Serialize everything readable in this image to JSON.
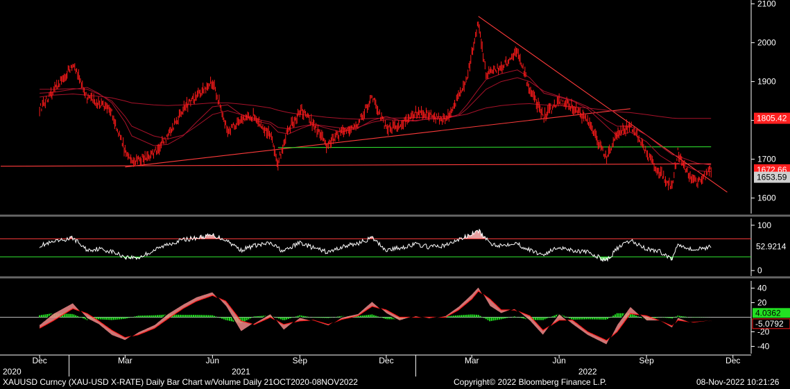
{
  "footer": {
    "description": "XAUUSD Curncy (XAU-USD X-RATE) Daily Bar Chart w/Volume  Daily 21OCT2020-08NOV2022",
    "copyright": "Copyright© 2022 Bloomberg Finance L.P.",
    "timestamp": "08-Nov-2022 10:21:26"
  },
  "colors": {
    "background": "#000000",
    "price": "#ff1a1a",
    "moving_average": "#a8122a",
    "trendline": "#ff3b3b",
    "support_green": "#2edc2e",
    "histogram_green": "#22e022",
    "rsi_line": "#ffffff",
    "fill_red": "#ffb3b3"
  },
  "chart_data": [
    {
      "type": "line",
      "panel": "price",
      "ylim": [
        1560,
        2110
      ],
      "yticks": [
        "1600",
        "1700",
        "1800",
        "1900",
        "2000",
        "2100"
      ],
      "last_value_tags": [
        {
          "label": "1805.42",
          "value": 1805.42,
          "color": "#ff2020"
        },
        {
          "label": "1672.66",
          "value": 1672.66,
          "color": "#ff2020"
        },
        {
          "label": "1653.59",
          "value": 1653.59,
          "color": "#d0d0d0"
        }
      ],
      "x": [
        "2020-12-01",
        "2020-12-15",
        "2021-01-05",
        "2021-01-20",
        "2021-02-01",
        "2021-02-15",
        "2021-03-01",
        "2021-03-08",
        "2021-03-31",
        "2021-04-15",
        "2021-05-01",
        "2021-05-15",
        "2021-06-01",
        "2021-06-17",
        "2021-07-01",
        "2021-07-15",
        "2021-08-01",
        "2021-08-09",
        "2021-08-20",
        "2021-09-03",
        "2021-09-15",
        "2021-09-29",
        "2021-10-15",
        "2021-11-01",
        "2021-11-16",
        "2021-12-01",
        "2021-12-15",
        "2022-01-01",
        "2022-01-15",
        "2022-02-01",
        "2022-02-15",
        "2022-02-24",
        "2022-03-08",
        "2022-03-16",
        "2022-04-01",
        "2022-04-18",
        "2022-05-01",
        "2022-05-16",
        "2022-06-01",
        "2022-06-15",
        "2022-07-01",
        "2022-07-21",
        "2022-08-01",
        "2022-08-15",
        "2022-09-01",
        "2022-09-15",
        "2022-09-28",
        "2022-10-04",
        "2022-10-15",
        "2022-10-24",
        "2022-11-08"
      ],
      "series": [
        {
          "values": [
            1830,
            1870,
            1945,
            1860,
            1845,
            1820,
            1720,
            1690,
            1715,
            1760,
            1830,
            1860,
            1900,
            1775,
            1795,
            1815,
            1760,
            1690,
            1780,
            1825,
            1790,
            1735,
            1770,
            1790,
            1860,
            1780,
            1785,
            1820,
            1815,
            1800,
            1860,
            1910,
            2055,
            1920,
            1935,
            1975,
            1880,
            1810,
            1850,
            1835,
            1800,
            1700,
            1765,
            1790,
            1715,
            1665,
            1630,
            1720,
            1660,
            1640,
            1672
          ]
        }
      ],
      "moving_averages": [
        {
          "values": [
            1870,
            1872,
            1880,
            1885,
            1870,
            1845,
            1795,
            1760,
            1735,
            1738,
            1760,
            1795,
            1835,
            1840,
            1815,
            1800,
            1790,
            1770,
            1765,
            1780,
            1790,
            1780,
            1770,
            1780,
            1800,
            1810,
            1800,
            1798,
            1805,
            1805,
            1815,
            1840,
            1880,
            1905,
            1920,
            1930,
            1910,
            1870,
            1860,
            1850,
            1830,
            1785,
            1760,
            1770,
            1745,
            1710,
            1690,
            1690,
            1680,
            1670,
            1668
          ]
        },
        {
          "values": [
            1880,
            1880,
            1882,
            1880,
            1868,
            1850,
            1810,
            1785,
            1760,
            1752,
            1762,
            1785,
            1815,
            1825,
            1815,
            1805,
            1795,
            1782,
            1778,
            1785,
            1790,
            1785,
            1780,
            1782,
            1795,
            1802,
            1800,
            1800,
            1803,
            1805,
            1812,
            1830,
            1860,
            1880,
            1900,
            1910,
            1900,
            1875,
            1862,
            1852,
            1835,
            1800,
            1785,
            1785,
            1762,
            1735,
            1712,
            1708,
            1698,
            1690,
            1685
          ]
        },
        {
          "values": [
            1860,
            1865,
            1868,
            1865,
            1862,
            1858,
            1850,
            1845,
            1840,
            1838,
            1840,
            1842,
            1845,
            1845,
            1842,
            1838,
            1832,
            1826,
            1820,
            1815,
            1812,
            1808,
            1805,
            1803,
            1805,
            1806,
            1806,
            1807,
            1808,
            1810,
            1812,
            1816,
            1826,
            1832,
            1838,
            1842,
            1843,
            1840,
            1838,
            1835,
            1832,
            1826,
            1822,
            1820,
            1815,
            1810,
            1806,
            1805,
            1805,
            1805,
            1805
          ]
        }
      ],
      "trendlines": [
        {
          "from": [
            "2020-10-21",
            1682
          ],
          "to": [
            "2022-11-08",
            1688
          ],
          "color": "#ff3b3b"
        },
        {
          "from": [
            "2021-03-01",
            1680
          ],
          "to": [
            "2022-08-15",
            1830
          ],
          "color": "#ff3b3b"
        },
        {
          "from": [
            "2022-03-08",
            2068
          ],
          "to": [
            "2022-11-25",
            1615
          ],
          "color": "#ff3b3b"
        },
        {
          "from": [
            "2021-08-09",
            1730
          ],
          "to": [
            "2022-11-08",
            1732
          ],
          "color": "#2edc2e"
        }
      ]
    },
    {
      "type": "line",
      "panel": "rsi",
      "ylim": [
        -12,
        115
      ],
      "yticks": [
        "0",
        "100"
      ],
      "hlines": [
        {
          "value": 70,
          "color": "#ff3b3b"
        },
        {
          "value": 30,
          "color": "#2edc2e"
        }
      ],
      "last_value": "52.9214",
      "x": [
        "2020-12-01",
        "2020-12-15",
        "2021-01-05",
        "2021-01-20",
        "2021-02-01",
        "2021-02-15",
        "2021-03-01",
        "2021-03-15",
        "2021-04-01",
        "2021-04-15",
        "2021-05-01",
        "2021-05-15",
        "2021-06-01",
        "2021-06-15",
        "2021-07-01",
        "2021-07-15",
        "2021-08-01",
        "2021-08-15",
        "2021-09-01",
        "2021-09-15",
        "2021-10-01",
        "2021-10-15",
        "2021-11-01",
        "2021-11-16",
        "2021-12-01",
        "2021-12-15",
        "2022-01-01",
        "2022-01-15",
        "2022-02-01",
        "2022-02-15",
        "2022-03-01",
        "2022-03-08",
        "2022-03-20",
        "2022-04-01",
        "2022-04-15",
        "2022-05-01",
        "2022-05-15",
        "2022-06-01",
        "2022-06-15",
        "2022-07-01",
        "2022-07-21",
        "2022-08-01",
        "2022-08-15",
        "2022-09-01",
        "2022-09-15",
        "2022-09-28",
        "2022-10-04",
        "2022-10-20",
        "2022-11-08"
      ],
      "series": [
        {
          "values": [
            55,
            62,
            72,
            45,
            48,
            42,
            30,
            28,
            45,
            58,
            68,
            72,
            78,
            68,
            45,
            55,
            60,
            42,
            62,
            50,
            40,
            52,
            60,
            72,
            45,
            50,
            58,
            52,
            55,
            68,
            80,
            88,
            60,
            55,
            62,
            45,
            35,
            52,
            45,
            40,
            22,
            48,
            66,
            48,
            42,
            25,
            60,
            45,
            53
          ]
        }
      ]
    },
    {
      "type": "line",
      "panel": "macd",
      "ylim": [
        -50,
        50
      ],
      "yticks": [
        "-40",
        "-20",
        "20",
        "40"
      ],
      "last_values": [
        {
          "label": "4.0362",
          "color": "#22e022"
        },
        {
          "label": "-5.0792",
          "color": "#ff1a1a"
        }
      ],
      "x": [
        "2020-12-01",
        "2020-12-15",
        "2021-01-05",
        "2021-01-20",
        "2021-02-01",
        "2021-02-15",
        "2021-03-01",
        "2021-03-15",
        "2021-04-01",
        "2021-04-15",
        "2021-05-01",
        "2021-05-15",
        "2021-06-01",
        "2021-06-15",
        "2021-07-01",
        "2021-07-15",
        "2021-08-01",
        "2021-08-15",
        "2021-09-01",
        "2021-09-15",
        "2021-10-01",
        "2021-10-15",
        "2021-11-01",
        "2021-11-16",
        "2021-12-01",
        "2021-12-15",
        "2022-01-01",
        "2022-01-15",
        "2022-02-01",
        "2022-02-15",
        "2022-03-01",
        "2022-03-08",
        "2022-03-20",
        "2022-04-01",
        "2022-04-15",
        "2022-05-01",
        "2022-05-15",
        "2022-06-01",
        "2022-06-15",
        "2022-07-01",
        "2022-07-21",
        "2022-08-01",
        "2022-08-15",
        "2022-09-01",
        "2022-09-15",
        "2022-09-28",
        "2022-10-04",
        "2022-10-20",
        "2022-11-08"
      ],
      "series": [
        {
          "name": "macd",
          "values": [
            -10,
            5,
            20,
            -2,
            -10,
            -25,
            -32,
            -20,
            -10,
            5,
            18,
            28,
            35,
            15,
            -20,
            -8,
            5,
            -18,
            0,
            -5,
            -12,
            0,
            5,
            22,
            5,
            -5,
            2,
            -2,
            2,
            15,
            32,
            42,
            15,
            5,
            12,
            -5,
            -25,
            5,
            -10,
            -25,
            -38,
            -10,
            15,
            -5,
            -5,
            -15,
            0,
            -8,
            -5
          ]
        },
        {
          "name": "signal",
          "values": [
            -15,
            -5,
            12,
            5,
            -5,
            -18,
            -28,
            -24,
            -15,
            -2,
            12,
            22,
            30,
            22,
            -5,
            -10,
            0,
            -10,
            -5,
            -4,
            -10,
            -3,
            2,
            15,
            10,
            0,
            0,
            0,
            0,
            10,
            25,
            36,
            25,
            10,
            10,
            2,
            -18,
            -4,
            -4,
            -20,
            -32,
            -20,
            5,
            2,
            -5,
            -12,
            -4,
            -7,
            -5
          ]
        }
      ]
    }
  ],
  "x_axis": {
    "month_ticks": [
      {
        "label": "Dec",
        "date": "2020-12-01"
      },
      {
        "label": "Mar",
        "date": "2021-03-01"
      },
      {
        "label": "Jun",
        "date": "2021-06-01"
      },
      {
        "label": "Sep",
        "date": "2021-09-01"
      },
      {
        "label": "Dec",
        "date": "2021-12-01"
      },
      {
        "label": "Mar",
        "date": "2022-03-01"
      },
      {
        "label": "Jun",
        "date": "2022-06-01"
      },
      {
        "label": "Sep",
        "date": "2022-09-01"
      },
      {
        "label": "Dec",
        "date": "2022-12-01"
      }
    ],
    "year_labels": [
      {
        "label": "2020",
        "date": "2020-10-21"
      },
      {
        "label": "2021",
        "date": "2021-07-01"
      },
      {
        "label": "2022",
        "date": "2022-07-01"
      }
    ]
  }
}
